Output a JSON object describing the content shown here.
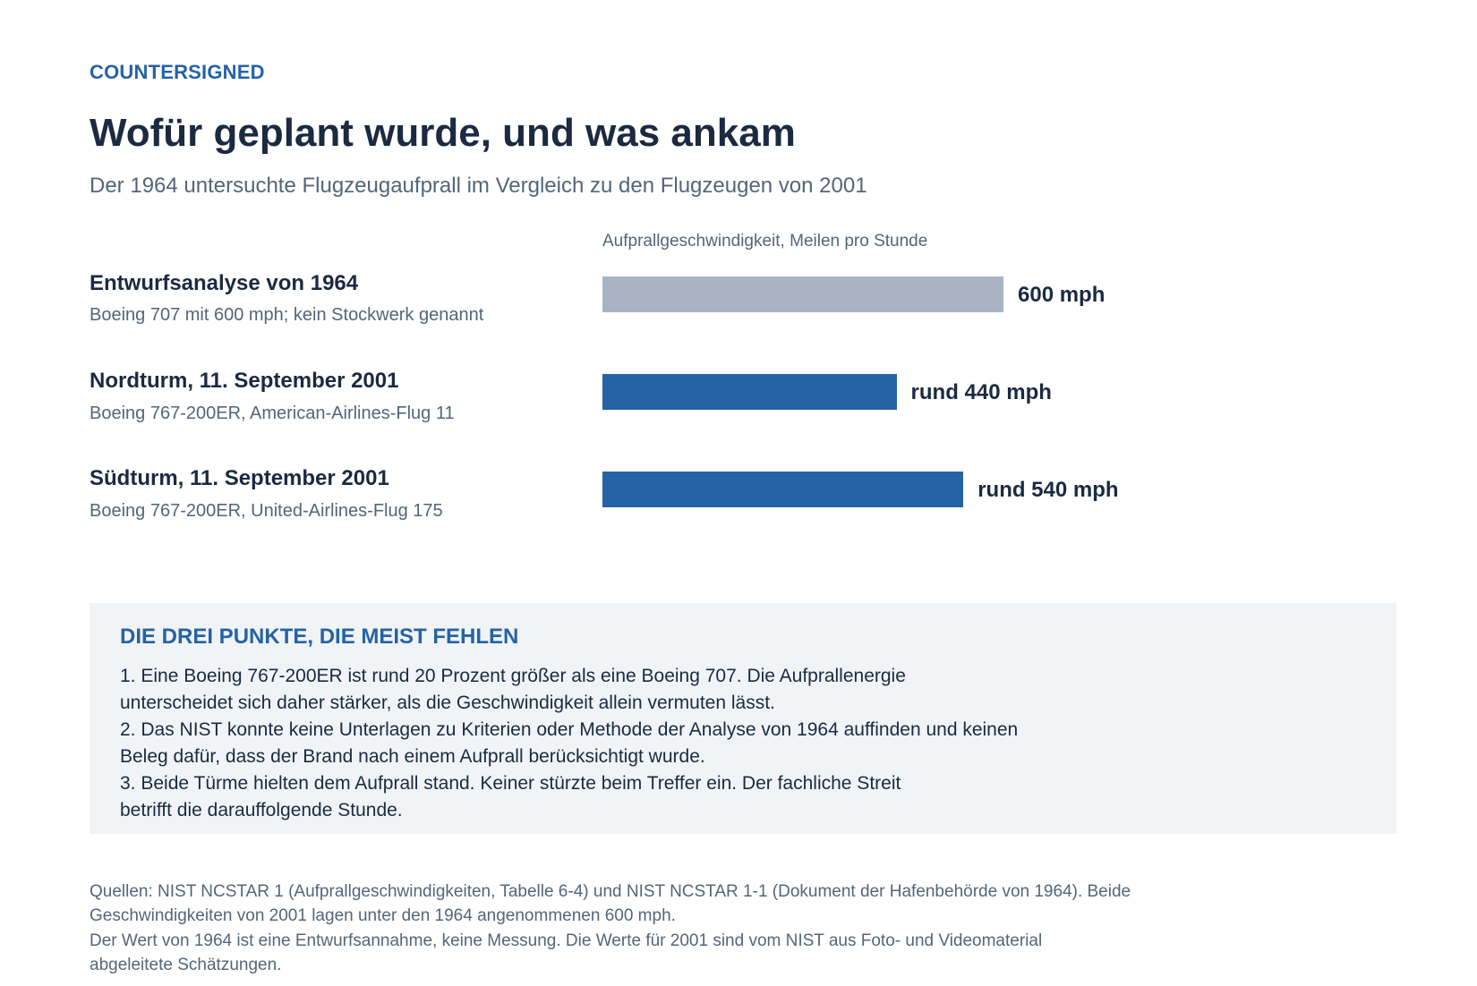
{
  "header": {
    "kicker": "COUNTERSIGNED",
    "title": "Wofür geplant wurde, und was ankam",
    "subtitle": "Der 1964 untersuchte Flugzeugaufprall im Vergleich zu den Flugzeugen von 2001"
  },
  "chart_data": {
    "type": "bar",
    "orientation": "horizontal",
    "axis_label": "Aufprallgeschwindigkeit, Meilen pro Stunde",
    "unit": "mph",
    "categories": [
      "Entwurfsanalyse von 1964",
      "Nordturm, 11. September 2001",
      "Südturm, 11. September 2001"
    ],
    "values": [
      600,
      440,
      540
    ],
    "rows": [
      {
        "title": "Entwurfsanalyse von 1964",
        "subtitle": "Boeing 707 mit 600 mph; kein Stockwerk genannt",
        "value": 600,
        "value_label": "600 mph",
        "color": "#a9b4c3"
      },
      {
        "title": "Nordturm, 11. September 2001",
        "subtitle": "Boeing 767-200ER, American-Airlines-Flug 11",
        "value": 440,
        "value_label": "rund 440 mph",
        "color": "#2563a6"
      },
      {
        "title": "Südturm, 11. September 2001",
        "subtitle": "Boeing 767-200ER, United-Airlines-Flug 175",
        "value": 540,
        "value_label": "rund 540 mph",
        "color": "#2563a6"
      }
    ],
    "grid": false
  },
  "notes": {
    "heading": "DIE DREI PUNKTE, DIE MEIST FEHLEN",
    "lines": [
      "1. Eine Boeing 767-200ER ist rund 20 Prozent größer als eine Boeing 707. Die Aufprallenergie",
      "unterscheidet sich daher stärker, als die Geschwindigkeit allein vermuten lässt.",
      "2. Das NIST konnte keine Unterlagen zu Kriterien oder Methode der Analyse von 1964 auffinden und keinen",
      "Beleg dafür, dass der Brand nach einem Aufprall berücksichtigt wurde.",
      "3. Beide Türme hielten dem Aufprall stand. Keiner stürzte beim Treffer ein. Der fachliche Streit",
      "betrifft die darauffolgende Stunde."
    ]
  },
  "sources": {
    "lines": [
      "Quellen: NIST NCSTAR 1 (Aufprallgeschwindigkeiten, Tabelle 6-4) und NIST NCSTAR 1-1 (Dokument der Hafenbehörde von 1964). Beide",
      "Geschwindigkeiten von 2001 lagen unter den 1964 angenommenen 600 mph.",
      "Der Wert von 1964 ist eine Entwurfsannahme, keine Messung. Die Werte für 2001 sind vom NIST aus Foto- und Videomaterial",
      "abgeleitete Schätzungen."
    ]
  }
}
